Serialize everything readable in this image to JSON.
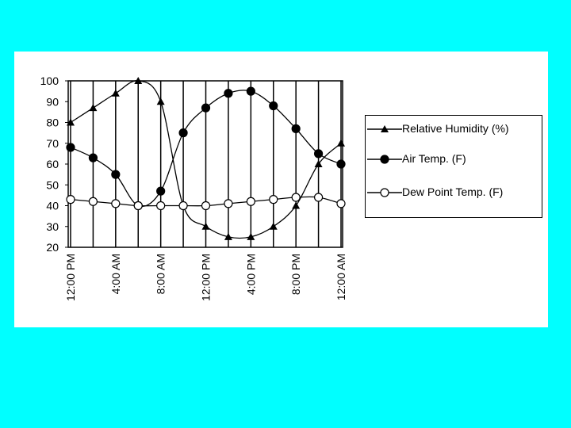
{
  "chart_data": {
    "type": "line",
    "categories": [
      "12:00 PM",
      null,
      "4:00 AM",
      null,
      "8:00 AM",
      null,
      "12:00 PM",
      null,
      "4:00 PM",
      null,
      "8:00 PM",
      null,
      "12:00 AM"
    ],
    "series": [
      {
        "name": "Relative Humidity (%)",
        "color": "#000000",
        "marker": "triangle",
        "values": [
          80,
          87,
          94,
          100,
          90,
          40,
          30,
          25,
          25,
          30,
          40,
          60,
          70
        ]
      },
      {
        "name": "Air Temp. (F)",
        "color": "#000000",
        "marker": "circle",
        "values": [
          68,
          63,
          55,
          40,
          47,
          75,
          87,
          94,
          95,
          88,
          77,
          65,
          60
        ]
      },
      {
        "name": "Dew Point Temp. (F)",
        "color": "#000000",
        "marker": "open-circle",
        "values": [
          43,
          42,
          41,
          40,
          40,
          40,
          40,
          41,
          42,
          43,
          44,
          44,
          41
        ]
      }
    ],
    "ylim": [
      20,
      100
    ],
    "yticks": [
      20,
      30,
      40,
      50,
      60,
      70,
      80,
      90,
      100
    ],
    "grid": true
  }
}
